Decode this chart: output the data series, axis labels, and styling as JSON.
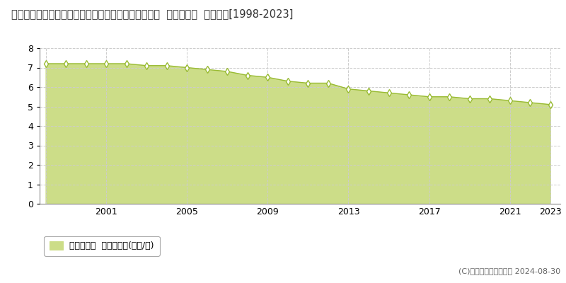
{
  "title": "和歌山県有田郡広川町大字下津木字権蔵原７４３番３  基準地価格  地価推移[1998-2023]",
  "years": [
    1998,
    1999,
    2000,
    2001,
    2002,
    2003,
    2004,
    2005,
    2006,
    2007,
    2008,
    2009,
    2010,
    2011,
    2012,
    2013,
    2014,
    2015,
    2016,
    2017,
    2018,
    2019,
    2020,
    2021,
    2022,
    2023
  ],
  "values": [
    7.2,
    7.2,
    7.2,
    7.2,
    7.2,
    7.1,
    7.1,
    7.0,
    6.9,
    6.8,
    6.6,
    6.5,
    6.3,
    6.2,
    6.2,
    5.9,
    5.8,
    5.7,
    5.6,
    5.5,
    5.5,
    5.4,
    5.4,
    5.3,
    5.2,
    5.1
  ],
  "line_color": "#99bb33",
  "fill_color": "#ccdd88",
  "marker_color": "#ffffff",
  "marker_edge_color": "#99bb33",
  "bg_color": "#ffffff",
  "plot_bg_color": "#ffffff",
  "grid_color": "#cccccc",
  "ylim_min": 0,
  "ylim_max": 8,
  "yticks": [
    0,
    1,
    2,
    3,
    4,
    5,
    6,
    7,
    8
  ],
  "xtick_positions": [
    1998,
    2001,
    2005,
    2009,
    2013,
    2017,
    2021,
    2023
  ],
  "xtick_labels": [
    "",
    "2001",
    "2005",
    "2009",
    "2013",
    "2017",
    "2021",
    "2023"
  ],
  "legend_label": "基準地価格  平均坪単価(万円/坪)",
  "copyright_text": "(C)土地価格ドットコム 2024-08-30",
  "title_fontsize": 10.5,
  "axis_fontsize": 9,
  "legend_fontsize": 9,
  "copyright_fontsize": 8
}
